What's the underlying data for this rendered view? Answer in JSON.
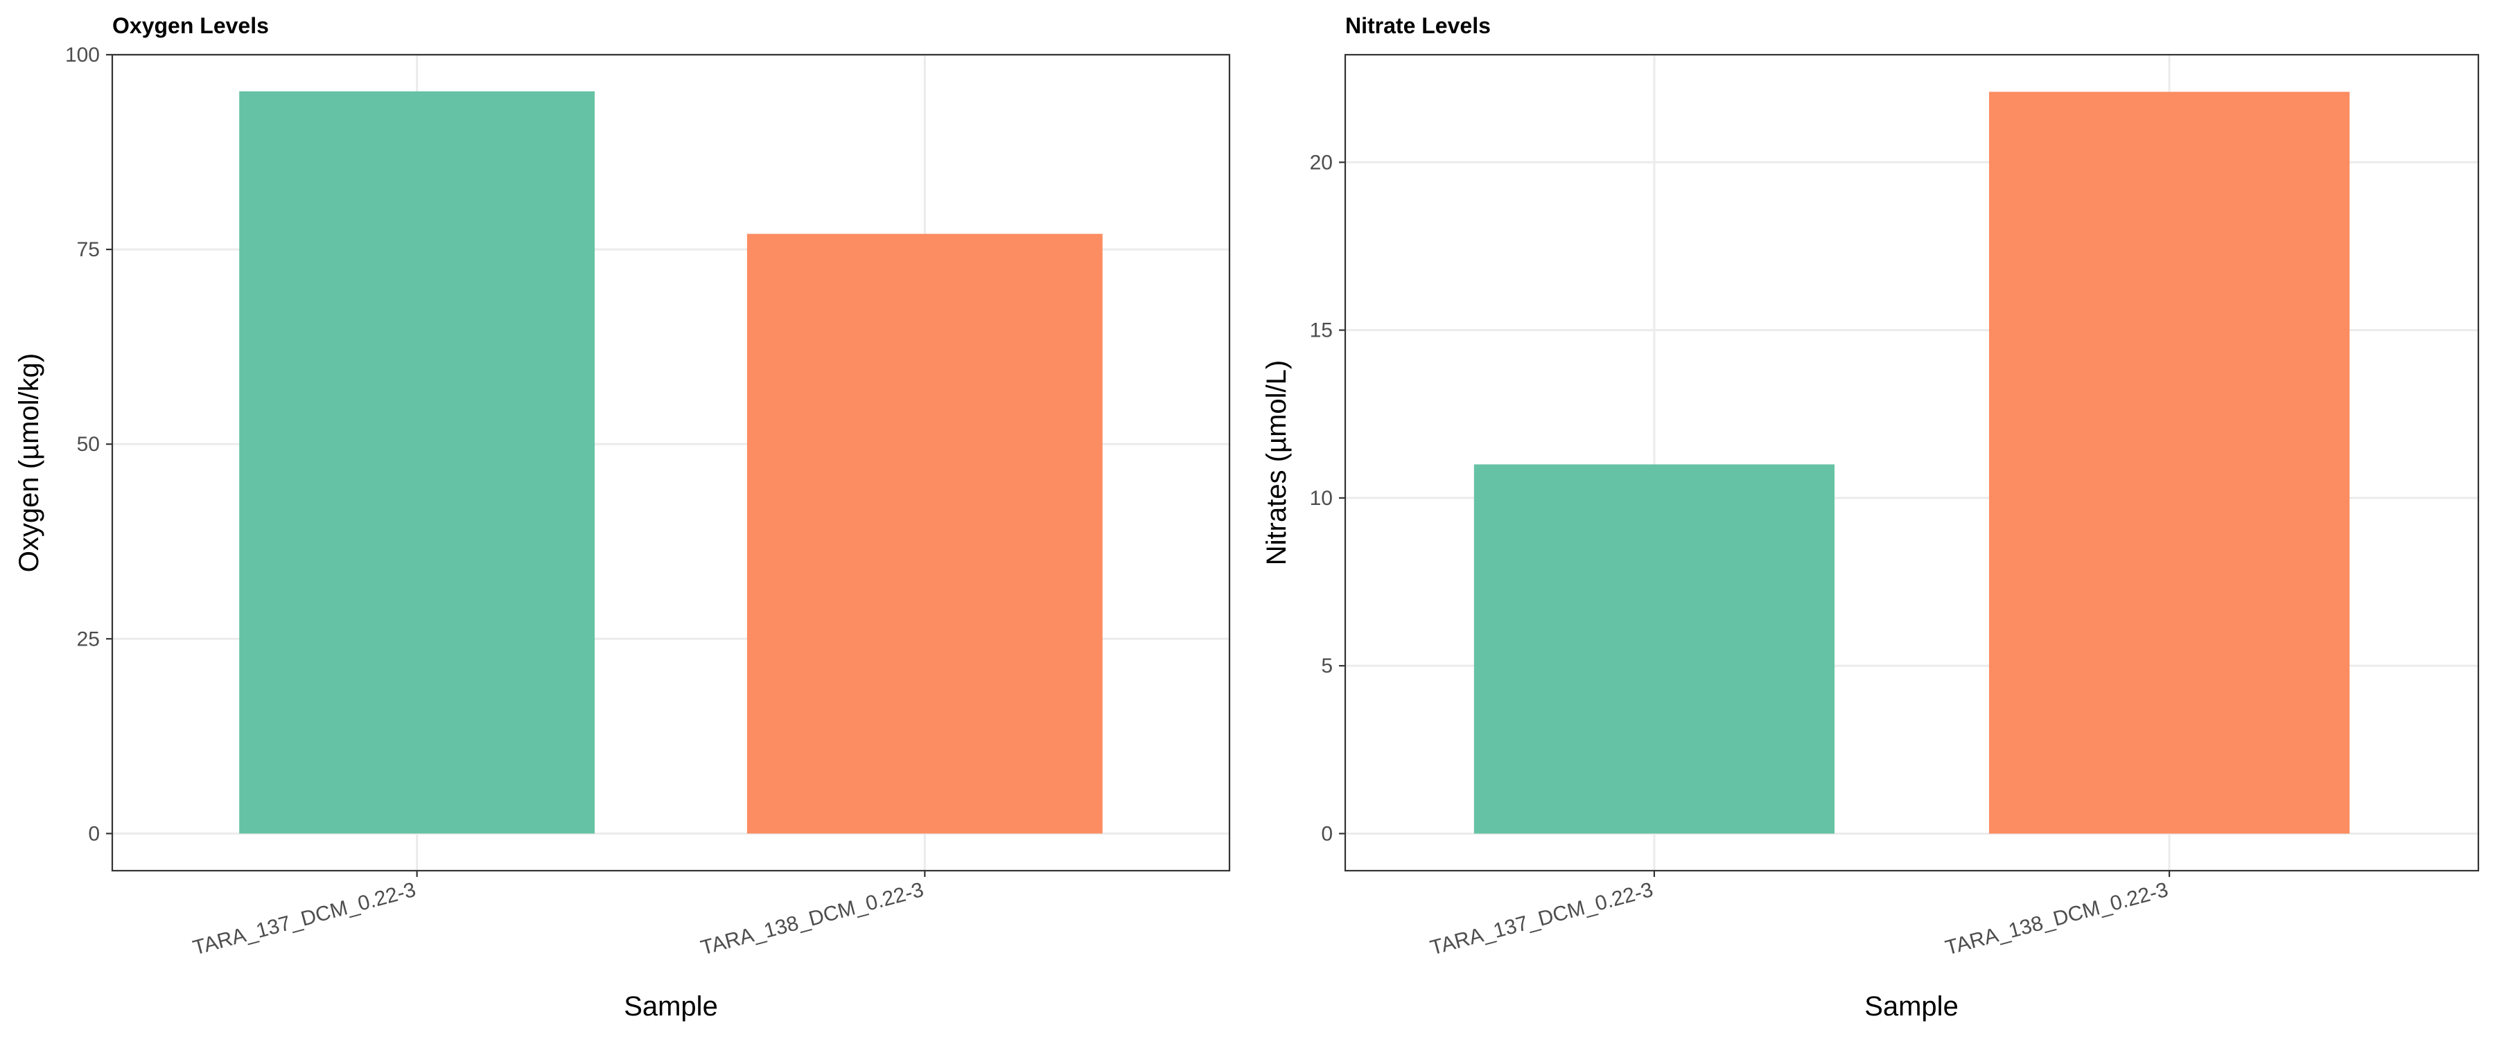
{
  "chart_data": [
    {
      "type": "bar",
      "title": "Oxygen Levels",
      "xlabel": "Sample",
      "ylabel": "Oxygen (µmol/kg)",
      "categories": [
        "TARA_137_DCM_0.22-3",
        "TARA_138_DCM_0.22-3"
      ],
      "values": [
        95.3,
        77.0
      ],
      "colors": [
        "#66c2a5",
        "#fc8d62"
      ],
      "ylim": [
        -4.77,
        100
      ],
      "yticks": [
        0,
        25,
        50,
        75,
        100
      ],
      "grid": true,
      "legend": "none"
    },
    {
      "type": "bar",
      "title": "Nitrate Levels",
      "xlabel": "Sample",
      "ylabel": "Nitrates (µmol/L)",
      "categories": [
        "TARA_137_DCM_0.22-3",
        "TARA_138_DCM_0.22-3"
      ],
      "values": [
        11.0,
        22.1
      ],
      "colors": [
        "#66c2a5",
        "#fc8d62"
      ],
      "ylim": [
        -1.105,
        23.205
      ],
      "yticks": [
        0,
        5,
        10,
        15,
        20
      ],
      "grid": true,
      "legend": "none"
    }
  ]
}
